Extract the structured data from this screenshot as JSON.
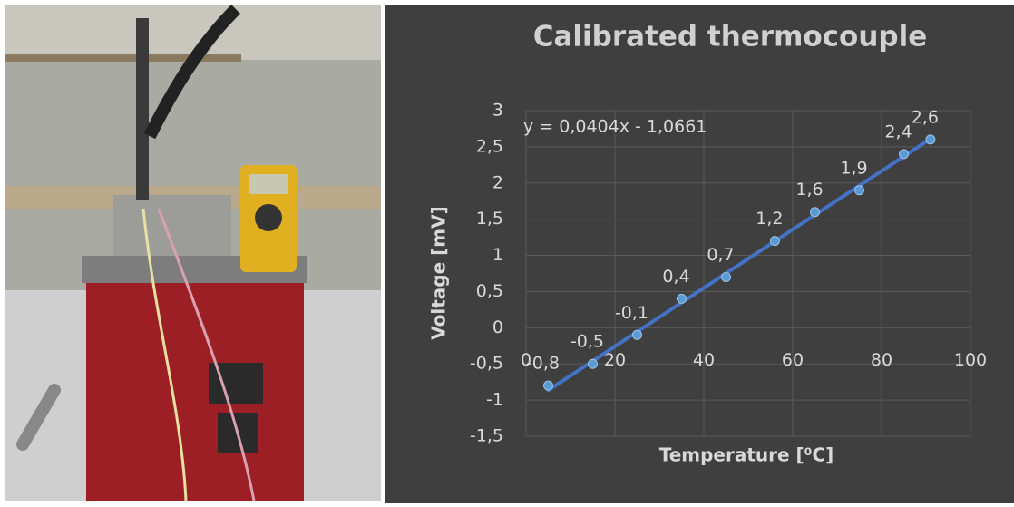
{
  "chart_data": {
    "type": "scatter",
    "title": "Calibrated thermocouple",
    "x_label": "Temperature [⁰C]",
    "y_label": "Voltage [mV]",
    "x": [
      5,
      15,
      25,
      35,
      45,
      56,
      65,
      75,
      85,
      91
    ],
    "values": [
      -0.8,
      -0.5,
      -0.1,
      0.4,
      0.7,
      1.2,
      1.6,
      1.9,
      2.4,
      2.6
    ],
    "value_labels": [
      "-0,8",
      "-0,5",
      "-0,1",
      "0,4",
      "0,7",
      "1,2",
      "1,6",
      "1,9",
      "2,4",
      "2,6"
    ],
    "color": "#5b9bd5",
    "trendline": {
      "label": "y = 0,0404x - 1,0661",
      "slope": 0.0404,
      "intercept": -1.0661,
      "color": "#4472c4"
    },
    "xlim": [
      0,
      100
    ],
    "xticks": [
      0,
      20,
      40,
      60,
      80,
      100
    ],
    "ylim": [
      -1.5,
      3
    ],
    "yticks": [
      {
        "value": -1.5,
        "label": "-1,5"
      },
      -1,
      {
        "value": -0.5,
        "label": "-0,5"
      },
      0,
      {
        "value": 0.5,
        "label": "0,5"
      },
      1,
      {
        "value": 1.5,
        "label": "1,5"
      },
      2,
      {
        "value": 2.5,
        "label": "2,5"
      },
      3
    ],
    "grid": true
  }
}
